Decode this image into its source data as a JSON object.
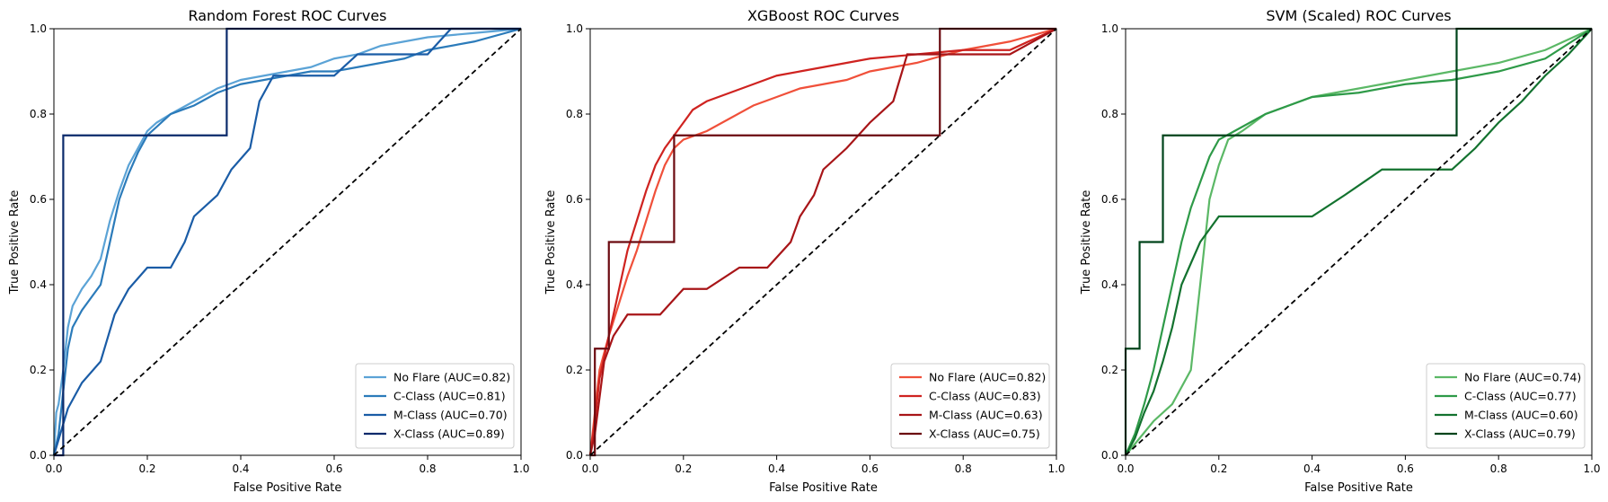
{
  "chart_data": [
    {
      "type": "line",
      "title": "Random Forest ROC Curves",
      "xlabel": "False Positive Rate",
      "ylabel": "True Positive Rate",
      "xlim": [
        0,
        1
      ],
      "ylim": [
        0,
        1
      ],
      "xticks": [
        "0.0",
        "0.2",
        "0.4",
        "0.6",
        "0.8",
        "1.0"
      ],
      "yticks": [
        "0.0",
        "0.2",
        "0.4",
        "0.6",
        "0.8",
        "1.0"
      ],
      "grid": false,
      "legend_position": "lower-right",
      "series": [
        {
          "name": "No Flare (AUC=0.82)",
          "color": "#5ba3d6",
          "x": [
            0,
            0.005,
            0.01,
            0.02,
            0.03,
            0.04,
            0.05,
            0.06,
            0.08,
            0.1,
            0.12,
            0.14,
            0.16,
            0.18,
            0.2,
            0.22,
            0.25,
            0.3,
            0.35,
            0.4,
            0.45,
            0.5,
            0.55,
            0.6,
            0.65,
            0.7,
            0.8,
            0.9,
            1.0
          ],
          "y": [
            0,
            0.1,
            0.12,
            0.2,
            0.3,
            0.35,
            0.37,
            0.39,
            0.42,
            0.46,
            0.55,
            0.62,
            0.68,
            0.72,
            0.76,
            0.78,
            0.8,
            0.83,
            0.86,
            0.88,
            0.89,
            0.9,
            0.91,
            0.93,
            0.94,
            0.96,
            0.98,
            0.99,
            1.0
          ]
        },
        {
          "name": "C-Class (AUC=0.81)",
          "color": "#2b7bba",
          "x": [
            0,
            0.01,
            0.02,
            0.03,
            0.04,
            0.06,
            0.08,
            0.1,
            0.12,
            0.14,
            0.16,
            0.18,
            0.2,
            0.22,
            0.25,
            0.3,
            0.35,
            0.4,
            0.45,
            0.5,
            0.55,
            0.6,
            0.65,
            0.7,
            0.75,
            0.8,
            0.9,
            1.0
          ],
          "y": [
            0,
            0.05,
            0.15,
            0.25,
            0.3,
            0.34,
            0.37,
            0.4,
            0.5,
            0.6,
            0.66,
            0.71,
            0.75,
            0.77,
            0.8,
            0.82,
            0.85,
            0.87,
            0.88,
            0.89,
            0.9,
            0.9,
            0.91,
            0.92,
            0.93,
            0.95,
            0.97,
            1.0
          ]
        },
        {
          "name": "M-Class (AUC=0.70)",
          "color": "#1a5ca6",
          "x": [
            0,
            0.03,
            0.06,
            0.1,
            0.13,
            0.16,
            0.2,
            0.25,
            0.28,
            0.3,
            0.35,
            0.38,
            0.42,
            0.44,
            0.47,
            0.5,
            0.55,
            0.6,
            0.65,
            0.7,
            0.75,
            0.8,
            0.85,
            0.9,
            1.0
          ],
          "y": [
            0,
            0.11,
            0.17,
            0.22,
            0.33,
            0.39,
            0.44,
            0.44,
            0.5,
            0.56,
            0.61,
            0.67,
            0.72,
            0.83,
            0.89,
            0.89,
            0.89,
            0.89,
            0.94,
            0.94,
            0.94,
            0.94,
            1.0,
            1.0,
            1.0
          ]
        },
        {
          "name": "X-Class (AUC=0.89)",
          "color": "#0b2a6b",
          "x": [
            0,
            0.02,
            0.02,
            0.37,
            0.37,
            1.0
          ],
          "y": [
            0,
            0,
            0.75,
            0.75,
            1.0,
            1.0
          ]
        }
      ]
    },
    {
      "type": "line",
      "title": "XGBoost ROC Curves",
      "xlabel": "False Positive Rate",
      "ylabel": "True Positive Rate",
      "xlim": [
        0,
        1
      ],
      "ylim": [
        0,
        1
      ],
      "xticks": [
        "0.0",
        "0.2",
        "0.4",
        "0.6",
        "0.8",
        "1.0"
      ],
      "yticks": [
        "0.0",
        "0.2",
        "0.4",
        "0.6",
        "0.8",
        "1.0"
      ],
      "grid": false,
      "legend_position": "lower-right",
      "series": [
        {
          "name": "No Flare (AUC=0.82)",
          "color": "#f0503a",
          "x": [
            0,
            0.01,
            0.02,
            0.04,
            0.06,
            0.08,
            0.1,
            0.12,
            0.14,
            0.16,
            0.18,
            0.2,
            0.25,
            0.3,
            0.35,
            0.4,
            0.45,
            0.5,
            0.55,
            0.6,
            0.7,
            0.8,
            0.9,
            1.0
          ],
          "y": [
            0,
            0.1,
            0.2,
            0.28,
            0.35,
            0.42,
            0.48,
            0.55,
            0.62,
            0.68,
            0.72,
            0.74,
            0.76,
            0.79,
            0.82,
            0.84,
            0.86,
            0.87,
            0.88,
            0.9,
            0.92,
            0.95,
            0.97,
            1.0
          ]
        },
        {
          "name": "C-Class (AUC=0.83)",
          "color": "#cf2320",
          "x": [
            0,
            0.01,
            0.02,
            0.04,
            0.06,
            0.08,
            0.1,
            0.12,
            0.14,
            0.16,
            0.18,
            0.2,
            0.22,
            0.25,
            0.3,
            0.35,
            0.4,
            0.45,
            0.5,
            0.55,
            0.6,
            0.7,
            0.8,
            0.9,
            1.0
          ],
          "y": [
            0,
            0.08,
            0.18,
            0.28,
            0.38,
            0.48,
            0.55,
            0.62,
            0.68,
            0.72,
            0.75,
            0.78,
            0.81,
            0.83,
            0.85,
            0.87,
            0.89,
            0.9,
            0.91,
            0.92,
            0.93,
            0.94,
            0.95,
            0.95,
            1.0
          ]
        },
        {
          "name": "M-Class (AUC=0.63)",
          "color": "#a81518",
          "x": [
            0,
            0.01,
            0.03,
            0.05,
            0.08,
            0.15,
            0.2,
            0.25,
            0.32,
            0.38,
            0.43,
            0.45,
            0.48,
            0.5,
            0.55,
            0.6,
            0.65,
            0.68,
            0.7,
            0.75,
            0.8,
            0.9,
            1.0
          ],
          "y": [
            0,
            0.05,
            0.22,
            0.28,
            0.33,
            0.33,
            0.39,
            0.39,
            0.44,
            0.44,
            0.5,
            0.56,
            0.61,
            0.67,
            0.72,
            0.78,
            0.83,
            0.94,
            0.94,
            0.94,
            0.94,
            0.94,
            1.0
          ]
        },
        {
          "name": "X-Class (AUC=0.75)",
          "color": "#6b0a10",
          "x": [
            0,
            0.01,
            0.01,
            0.04,
            0.04,
            0.18,
            0.18,
            0.75,
            0.75,
            1.0
          ],
          "y": [
            0,
            0,
            0.25,
            0.25,
            0.5,
            0.5,
            0.75,
            0.75,
            1.0,
            1.0
          ]
        }
      ]
    },
    {
      "type": "line",
      "title": "SVM (Scaled) ROC Curves",
      "xlabel": "False Positive Rate",
      "ylabel": "True Positive Rate",
      "xlim": [
        0,
        1
      ],
      "ylim": [
        0,
        1
      ],
      "xticks": [
        "0.0",
        "0.2",
        "0.4",
        "0.6",
        "0.8",
        "1.0"
      ],
      "yticks": [
        "0.0",
        "0.2",
        "0.4",
        "0.6",
        "0.8",
        "1.0"
      ],
      "grid": false,
      "legend_position": "lower-right",
      "series": [
        {
          "name": "No Flare (AUC=0.74)",
          "color": "#5bb866",
          "x": [
            0,
            0.03,
            0.06,
            0.1,
            0.14,
            0.16,
            0.18,
            0.2,
            0.22,
            0.25,
            0.3,
            0.35,
            0.4,
            0.45,
            0.5,
            0.55,
            0.6,
            0.7,
            0.8,
            0.9,
            1.0
          ],
          "y": [
            0,
            0.04,
            0.08,
            0.12,
            0.2,
            0.4,
            0.6,
            0.68,
            0.74,
            0.76,
            0.8,
            0.82,
            0.84,
            0.85,
            0.86,
            0.87,
            0.88,
            0.9,
            0.92,
            0.95,
            1.0
          ]
        },
        {
          "name": "C-Class (AUC=0.77)",
          "color": "#2e9a48",
          "x": [
            0,
            0.02,
            0.04,
            0.06,
            0.08,
            0.1,
            0.12,
            0.14,
            0.16,
            0.18,
            0.2,
            0.25,
            0.3,
            0.35,
            0.4,
            0.5,
            0.6,
            0.7,
            0.8,
            0.9,
            1.0
          ],
          "y": [
            0,
            0.05,
            0.12,
            0.2,
            0.3,
            0.4,
            0.5,
            0.58,
            0.64,
            0.7,
            0.74,
            0.77,
            0.8,
            0.82,
            0.84,
            0.85,
            0.87,
            0.88,
            0.9,
            0.93,
            1.0
          ]
        },
        {
          "name": "M-Class (AUC=0.60)",
          "color": "#13722f",
          "x": [
            0,
            0.02,
            0.04,
            0.06,
            0.08,
            0.1,
            0.12,
            0.14,
            0.16,
            0.18,
            0.2,
            0.3,
            0.4,
            0.47,
            0.55,
            0.7,
            0.75,
            0.8,
            0.85,
            0.9,
            0.95,
            1.0
          ],
          "y": [
            0,
            0.04,
            0.1,
            0.15,
            0.22,
            0.3,
            0.4,
            0.45,
            0.5,
            0.53,
            0.56,
            0.56,
            0.56,
            0.61,
            0.67,
            0.67,
            0.72,
            0.78,
            0.83,
            0.89,
            0.94,
            1.0
          ]
        },
        {
          "name": "X-Class (AUC=0.79)",
          "color": "#00441b",
          "x": [
            0,
            0.0,
            0.03,
            0.03,
            0.08,
            0.08,
            0.71,
            0.71,
            1.0
          ],
          "y": [
            0,
            0.25,
            0.25,
            0.5,
            0.5,
            0.75,
            0.75,
            1.0,
            1.0
          ]
        }
      ]
    }
  ]
}
